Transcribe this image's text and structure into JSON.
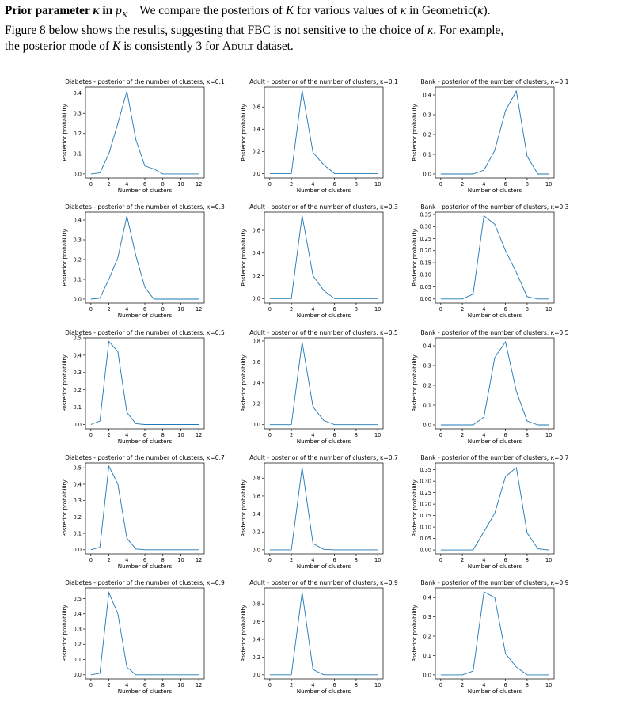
{
  "paragraph": {
    "heading_bold": "Prior parameter",
    "heading_kappa": "κ",
    "heading_in": "in",
    "heading_pk": "p",
    "heading_pk_sub": "K",
    "s1_a": "We compare the posteriors of",
    "s1_K": "K",
    "s1_b": "for various values of",
    "s1_kappa": "κ",
    "s1_c": "in Geometric(",
    "s1_kappa2": "κ",
    "s1_d": ").",
    "s2_a": "Figure 8 below shows the results, suggesting that FBC is not sensitive to the choice of",
    "s2_kappa": "κ",
    "s2_b": ". For example,",
    "s3_a": "the posterior mode of",
    "s3_K": "K",
    "s3_b": "is consistently 3 for",
    "s3_adult": "Adult",
    "s3_c": "dataset."
  },
  "chart_style": {
    "line_color": "#1f77b4",
    "xlabel": "Number of clusters",
    "ylabel": "Posterior probability"
  },
  "chart_data": [
    {
      "type": "line",
      "title": "Diabetes - posterior of the number of clusters, κ=0.1",
      "xlabel": "Number of clusters",
      "ylabel": "Posterior probability",
      "x": [
        0,
        1,
        2,
        3,
        4,
        5,
        6,
        7,
        8,
        9,
        10,
        11,
        12
      ],
      "y": [
        0,
        0.005,
        0.1,
        0.25,
        0.41,
        0.17,
        0.04,
        0.025,
        0,
        0,
        0,
        0,
        0
      ],
      "xlim": [
        -0.6,
        12.6
      ],
      "ylim": [
        -0.02,
        0.43
      ],
      "xticks": [
        0,
        2,
        4,
        6,
        8,
        10,
        12
      ],
      "yticks": [
        0,
        0.1,
        0.2,
        0.3,
        0.4
      ],
      "yticklabels": [
        "0.0",
        "0.1",
        "0.2",
        "0.3",
        "0.4"
      ]
    },
    {
      "type": "line",
      "title": "Adult - posterior of the number of clusters, κ=0.1",
      "xlabel": "Number of clusters",
      "ylabel": "Posterior probability",
      "x": [
        0,
        1,
        2,
        3,
        4,
        5,
        6,
        7,
        8,
        9,
        10
      ],
      "y": [
        0,
        0,
        0,
        0.75,
        0.19,
        0.08,
        0,
        0,
        0,
        0,
        0
      ],
      "xlim": [
        -0.5,
        10.5
      ],
      "ylim": [
        -0.04,
        0.78
      ],
      "xticks": [
        0,
        2,
        4,
        6,
        8,
        10
      ],
      "yticks": [
        0,
        0.2,
        0.4,
        0.6
      ],
      "yticklabels": [
        "0.0",
        "0.2",
        "0.4",
        "0.6"
      ]
    },
    {
      "type": "line",
      "title": "Bank - posterior of the number of clusters, κ=0.1",
      "xlabel": "Number of clusters",
      "ylabel": "Posterior probability",
      "x": [
        0,
        1,
        2,
        3,
        4,
        5,
        6,
        7,
        8,
        9,
        10
      ],
      "y": [
        0,
        0,
        0,
        0,
        0.02,
        0.12,
        0.32,
        0.42,
        0.09,
        0,
        0
      ],
      "xlim": [
        -0.5,
        10.5
      ],
      "ylim": [
        -0.02,
        0.44
      ],
      "xticks": [
        0,
        2,
        4,
        6,
        8,
        10
      ],
      "yticks": [
        0,
        0.1,
        0.2,
        0.3,
        0.4
      ],
      "yticklabels": [
        "0.0",
        "0.1",
        "0.2",
        "0.3",
        "0.4"
      ]
    },
    {
      "type": "line",
      "title": "Diabetes - posterior of the number of clusters, κ=0.3",
      "xlabel": "Number of clusters",
      "ylabel": "Posterior probability",
      "x": [
        0,
        1,
        2,
        3,
        4,
        5,
        6,
        7,
        8,
        9,
        10,
        11,
        12
      ],
      "y": [
        0,
        0.005,
        0.1,
        0.21,
        0.42,
        0.22,
        0.06,
        0,
        0,
        0,
        0,
        0,
        0
      ],
      "xlim": [
        -0.6,
        12.6
      ],
      "ylim": [
        -0.02,
        0.44
      ],
      "xticks": [
        0,
        2,
        4,
        6,
        8,
        10,
        12
      ],
      "yticks": [
        0,
        0.1,
        0.2,
        0.3,
        0.4
      ],
      "yticklabels": [
        "0.0",
        "0.1",
        "0.2",
        "0.3",
        "0.4"
      ]
    },
    {
      "type": "line",
      "title": "Adult - posterior of the number of clusters, κ=0.3",
      "xlabel": "Number of clusters",
      "ylabel": "Posterior probability",
      "x": [
        0,
        1,
        2,
        3,
        4,
        5,
        6,
        7,
        8,
        9,
        10
      ],
      "y": [
        0,
        0,
        0,
        0.73,
        0.2,
        0.07,
        0,
        0,
        0,
        0,
        0
      ],
      "xlim": [
        -0.5,
        10.5
      ],
      "ylim": [
        -0.04,
        0.76
      ],
      "xticks": [
        0,
        2,
        4,
        6,
        8,
        10
      ],
      "yticks": [
        0,
        0.2,
        0.4,
        0.6
      ],
      "yticklabels": [
        "0.0",
        "0.2",
        "0.4",
        "0.6"
      ]
    },
    {
      "type": "line",
      "title": "Bank - posterior of the number of clusters, κ=0.3",
      "xlabel": "Number of clusters",
      "ylabel": "Posterior probability",
      "x": [
        0,
        1,
        2,
        3,
        4,
        5,
        6,
        7,
        8,
        9,
        10
      ],
      "y": [
        0,
        0,
        0,
        0.02,
        0.345,
        0.31,
        0.2,
        0.11,
        0.01,
        0,
        0
      ],
      "xlim": [
        -0.5,
        10.5
      ],
      "ylim": [
        -0.017,
        0.36
      ],
      "xticks": [
        0,
        2,
        4,
        6,
        8,
        10
      ],
      "yticks": [
        0,
        0.05,
        0.1,
        0.15,
        0.2,
        0.25,
        0.3,
        0.35
      ],
      "yticklabels": [
        "0.00",
        "0.05",
        "0.10",
        "0.15",
        "0.20",
        "0.25",
        "0.30",
        "0.35"
      ]
    },
    {
      "type": "line",
      "title": "Diabetes - posterior of the number of clusters, κ=0.5",
      "xlabel": "Number of clusters",
      "ylabel": "Posterior probability",
      "x": [
        0,
        1,
        2,
        3,
        4,
        5,
        6,
        7,
        8,
        9,
        10,
        11,
        12
      ],
      "y": [
        0,
        0.02,
        0.48,
        0.42,
        0.07,
        0.005,
        0,
        0,
        0,
        0,
        0,
        0,
        0
      ],
      "xlim": [
        -0.6,
        12.6
      ],
      "ylim": [
        -0.025,
        0.5
      ],
      "xticks": [
        0,
        2,
        4,
        6,
        8,
        10,
        12
      ],
      "yticks": [
        0,
        0.1,
        0.2,
        0.3,
        0.4,
        0.5
      ],
      "yticklabels": [
        "0.0",
        "0.1",
        "0.2",
        "0.3",
        "0.4",
        "0.5"
      ]
    },
    {
      "type": "line",
      "title": "Adult - posterior of the number of clusters, κ=0.5",
      "xlabel": "Number of clusters",
      "ylabel": "Posterior probability",
      "x": [
        0,
        1,
        2,
        3,
        4,
        5,
        6,
        7,
        8,
        9,
        10
      ],
      "y": [
        0,
        0,
        0,
        0.79,
        0.17,
        0.04,
        0,
        0,
        0,
        0,
        0
      ],
      "xlim": [
        -0.5,
        10.5
      ],
      "ylim": [
        -0.04,
        0.83
      ],
      "xticks": [
        0,
        2,
        4,
        6,
        8,
        10
      ],
      "yticks": [
        0,
        0.2,
        0.4,
        0.6,
        0.8
      ],
      "yticklabels": [
        "0.0",
        "0.2",
        "0.4",
        "0.6",
        "0.8"
      ]
    },
    {
      "type": "line",
      "title": "Bank - posterior of the number of clusters, κ=0.5",
      "xlabel": "Number of clusters",
      "ylabel": "Posterior probability",
      "x": [
        0,
        1,
        2,
        3,
        4,
        5,
        6,
        7,
        8,
        9,
        10
      ],
      "y": [
        0,
        0,
        0,
        0,
        0.04,
        0.34,
        0.42,
        0.17,
        0.02,
        0,
        0
      ],
      "xlim": [
        -0.5,
        10.5
      ],
      "ylim": [
        -0.02,
        0.44
      ],
      "xticks": [
        0,
        2,
        4,
        6,
        8,
        10
      ],
      "yticks": [
        0,
        0.1,
        0.2,
        0.3,
        0.4
      ],
      "yticklabels": [
        "0.0",
        "0.1",
        "0.2",
        "0.3",
        "0.4"
      ]
    },
    {
      "type": "line",
      "title": "Diabetes - posterior of the number of clusters, κ=0.7",
      "xlabel": "Number of clusters",
      "ylabel": "Posterior probability",
      "x": [
        0,
        1,
        2,
        3,
        4,
        5,
        6,
        7,
        8,
        9,
        10,
        11,
        12
      ],
      "y": [
        0,
        0.015,
        0.51,
        0.4,
        0.07,
        0.005,
        0,
        0,
        0,
        0,
        0,
        0,
        0
      ],
      "xlim": [
        -0.6,
        12.6
      ],
      "ylim": [
        -0.025,
        0.53
      ],
      "xticks": [
        0,
        2,
        4,
        6,
        8,
        10,
        12
      ],
      "yticks": [
        0,
        0.1,
        0.2,
        0.3,
        0.4,
        0.5
      ],
      "yticklabels": [
        "0.0",
        "0.1",
        "0.2",
        "0.3",
        "0.4",
        "0.5"
      ]
    },
    {
      "type": "line",
      "title": "Adult - posterior of the number of clusters, κ=0.7",
      "xlabel": "Number of clusters",
      "ylabel": "Posterior probability",
      "x": [
        0,
        1,
        2,
        3,
        4,
        5,
        6,
        7,
        8,
        9,
        10
      ],
      "y": [
        0,
        0,
        0,
        0.92,
        0.07,
        0.005,
        0,
        0,
        0,
        0,
        0
      ],
      "xlim": [
        -0.5,
        10.5
      ],
      "ylim": [
        -0.045,
        0.97
      ],
      "xticks": [
        0,
        2,
        4,
        6,
        8,
        10
      ],
      "yticks": [
        0,
        0.2,
        0.4,
        0.6,
        0.8
      ],
      "yticklabels": [
        "0.0",
        "0.2",
        "0.4",
        "0.6",
        "0.8"
      ]
    },
    {
      "type": "line",
      "title": "Bank - posterior of the number of clusters, κ=0.7",
      "xlabel": "Number of clusters",
      "ylabel": "Posterior probability",
      "x": [
        0,
        1,
        2,
        3,
        4,
        5,
        6,
        7,
        8,
        9,
        10
      ],
      "y": [
        0,
        0,
        0,
        0,
        0.08,
        0.16,
        0.32,
        0.36,
        0.075,
        0.005,
        0
      ],
      "xlim": [
        -0.5,
        10.5
      ],
      "ylim": [
        -0.017,
        0.38
      ],
      "xticks": [
        0,
        2,
        4,
        6,
        8,
        10
      ],
      "yticks": [
        0,
        0.05,
        0.1,
        0.15,
        0.2,
        0.25,
        0.3,
        0.35
      ],
      "yticklabels": [
        "0.00",
        "0.05",
        "0.10",
        "0.15",
        "0.20",
        "0.25",
        "0.30",
        "0.35"
      ]
    },
    {
      "type": "line",
      "title": "Diabetes - posterior of the number of clusters, κ=0.9",
      "xlabel": "Number of clusters",
      "ylabel": "Posterior probability",
      "x": [
        0,
        1,
        2,
        3,
        4,
        5,
        6,
        7,
        8,
        9,
        10,
        11,
        12
      ],
      "y": [
        0,
        0.01,
        0.54,
        0.4,
        0.05,
        0,
        0,
        0,
        0,
        0,
        0,
        0,
        0
      ],
      "xlim": [
        -0.6,
        12.6
      ],
      "ylim": [
        -0.027,
        0.57
      ],
      "xticks": [
        0,
        2,
        4,
        6,
        8,
        10,
        12
      ],
      "yticks": [
        0,
        0.1,
        0.2,
        0.3,
        0.4,
        0.5
      ],
      "yticklabels": [
        "0.0",
        "0.1",
        "0.2",
        "0.3",
        "0.4",
        "0.5"
      ]
    },
    {
      "type": "line",
      "title": "Adult - posterior of the number of clusters, κ=0.9",
      "xlabel": "Number of clusters",
      "ylabel": "Posterior probability",
      "x": [
        0,
        1,
        2,
        3,
        4,
        5,
        6,
        7,
        8,
        9,
        10
      ],
      "y": [
        0,
        0,
        0,
        0.93,
        0.06,
        0,
        0,
        0,
        0,
        0,
        0
      ],
      "xlim": [
        -0.5,
        10.5
      ],
      "ylim": [
        -0.046,
        0.98
      ],
      "xticks": [
        0,
        2,
        4,
        6,
        8,
        10
      ],
      "yticks": [
        0,
        0.2,
        0.4,
        0.6,
        0.8
      ],
      "yticklabels": [
        "0.0",
        "0.2",
        "0.4",
        "0.6",
        "0.8"
      ]
    },
    {
      "type": "line",
      "title": "Bank - posterior of the number of clusters, κ=0.9",
      "xlabel": "Number of clusters",
      "ylabel": "Posterior probability",
      "x": [
        0,
        1,
        2,
        3,
        4,
        5,
        6,
        7,
        8,
        9,
        10
      ],
      "y": [
        0,
        0,
        0,
        0.02,
        0.43,
        0.4,
        0.11,
        0.04,
        0,
        0,
        0
      ],
      "xlim": [
        -0.5,
        10.5
      ],
      "ylim": [
        -0.021,
        0.45
      ],
      "xticks": [
        0,
        2,
        4,
        6,
        8,
        10
      ],
      "yticks": [
        0,
        0.1,
        0.2,
        0.3,
        0.4
      ],
      "yticklabels": [
        "0.0",
        "0.1",
        "0.2",
        "0.3",
        "0.4"
      ]
    }
  ]
}
